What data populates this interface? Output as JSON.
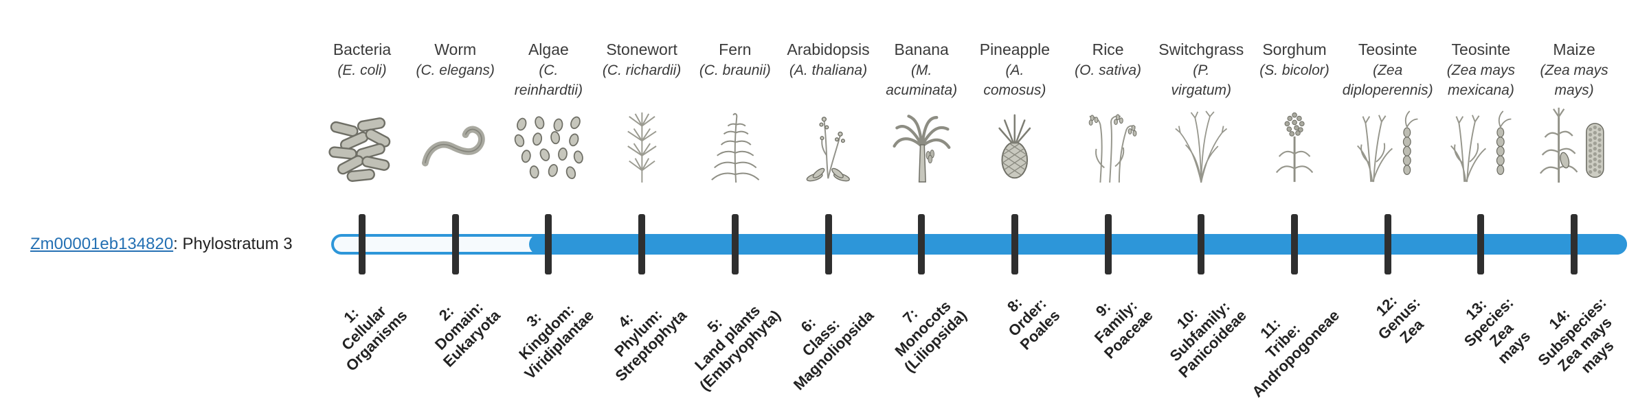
{
  "gene": {
    "id": "Zm00001eb134820",
    "suffix": ": Phylostratum 3",
    "phylostratum": 3,
    "link_color": "#2470b3"
  },
  "track": {
    "fill_color": "#2d96d9",
    "empty_fill": "#f6fafd",
    "tick_color": "#2f2f2f",
    "filled_from_stratum": 3,
    "total_strata": 14
  },
  "strata": [
    {
      "index": "1",
      "common_name": "Bacteria",
      "scientific_name": "(E. coli)",
      "icon": "bacteria-icon",
      "stage_label": "1:\nCellular\nOrganisms"
    },
    {
      "index": "2",
      "common_name": "Worm",
      "scientific_name": "(C. elegans)",
      "icon": "worm-icon",
      "stage_label": "2:\nDomain:\nEukaryota"
    },
    {
      "index": "3",
      "common_name": "Algae",
      "scientific_name": "(C.\nreinhardtii)",
      "icon": "algae-icon",
      "stage_label": "3:\nKingdom:\nViridiplantae"
    },
    {
      "index": "4",
      "common_name": "Stonewort",
      "scientific_name": "(C. richardii)",
      "icon": "stonewort-icon",
      "stage_label": "4:\nPhylum:\nStreptophyta"
    },
    {
      "index": "5",
      "common_name": "Fern",
      "scientific_name": "(C. braunii)",
      "icon": "fern-icon",
      "stage_label": "5:\nLand plants\n(Embryophyta)"
    },
    {
      "index": "6",
      "common_name": "Arabidopsis",
      "scientific_name": "(A. thaliana)",
      "icon": "arabidopsis-icon",
      "stage_label": "6:\nClass:\nMagnoliopsida"
    },
    {
      "index": "7",
      "common_name": "Banana",
      "scientific_name": "(M.\nacuminata)",
      "icon": "banana-icon",
      "stage_label": "7:\nMonocots\n(Liliopsida)"
    },
    {
      "index": "8",
      "common_name": "Pineapple",
      "scientific_name": "(A.\ncomosus)",
      "icon": "pineapple-icon",
      "stage_label": "8:\nOrder:\nPoales"
    },
    {
      "index": "9",
      "common_name": "Rice",
      "scientific_name": "(O. sativa)",
      "icon": "rice-icon",
      "stage_label": "9:\nFamily:\nPoaceae"
    },
    {
      "index": "10",
      "common_name": "Switchgrass",
      "scientific_name": "(P.\nvirgatum)",
      "icon": "switchgrass-icon",
      "stage_label": "10:\nSubfamily:\nPanicoideae"
    },
    {
      "index": "11",
      "common_name": "Sorghum",
      "scientific_name": "(S. bicolor)",
      "icon": "sorghum-icon",
      "stage_label": "11:\nTribe:\nAndropogoneae"
    },
    {
      "index": "12",
      "common_name": "Teosinte",
      "scientific_name": "(Zea\ndiploperennis)",
      "icon": "teosinte-icon",
      "stage_label": "12:\nGenus:\nZea"
    },
    {
      "index": "13",
      "common_name": "Teosinte",
      "scientific_name": "(Zea mays\nmexicana)",
      "icon": "teosinte-icon",
      "stage_label": "13:\nSpecies:\nZea\nmays"
    },
    {
      "index": "14",
      "common_name": "Maize",
      "scientific_name": "(Zea mays\nmays)",
      "icon": "maize-icon",
      "stage_label": "14:\nSubspecies:\nZea mays\nmays"
    }
  ]
}
